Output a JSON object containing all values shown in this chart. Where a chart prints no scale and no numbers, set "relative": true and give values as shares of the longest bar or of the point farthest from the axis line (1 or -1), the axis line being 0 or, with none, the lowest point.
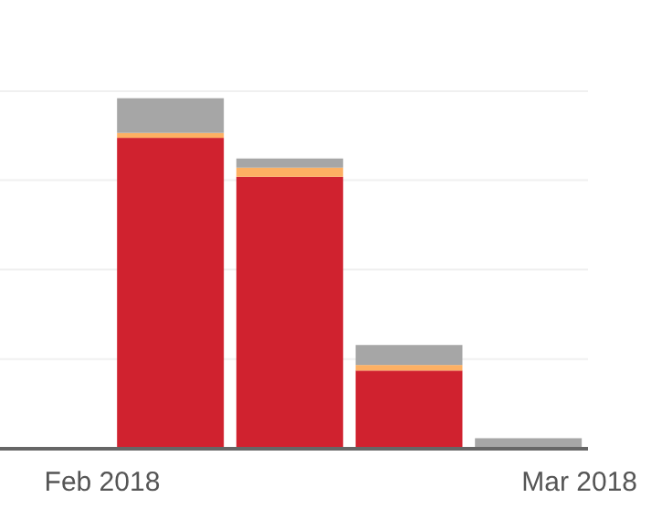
{
  "chart_data": {
    "type": "bar",
    "stacked": true,
    "relative": true,
    "grid": "y",
    "x": [
      "2018-02-05",
      "2018-02-12",
      "2018-02-19",
      "2018-02-26"
    ],
    "xlim": [
      "2018-01-26",
      "2018-03-01T12:00"
    ],
    "xticks": [
      {
        "value": "2018-02-01",
        "label": "Feb 2018"
      },
      {
        "value": "2018-03-01",
        "label": "Mar 2018"
      }
    ],
    "series": [
      {
        "color": "#d0222f",
        "values": [
          0.887,
          0.776,
          0.223,
          0.004
        ]
      },
      {
        "color": "#fdb063",
        "values": [
          0.014,
          0.026,
          0.016,
          0
        ]
      },
      {
        "color": "#a6a6a6",
        "values": [
          0.099,
          0.026,
          0.057,
          0.026
        ]
      }
    ]
  }
}
